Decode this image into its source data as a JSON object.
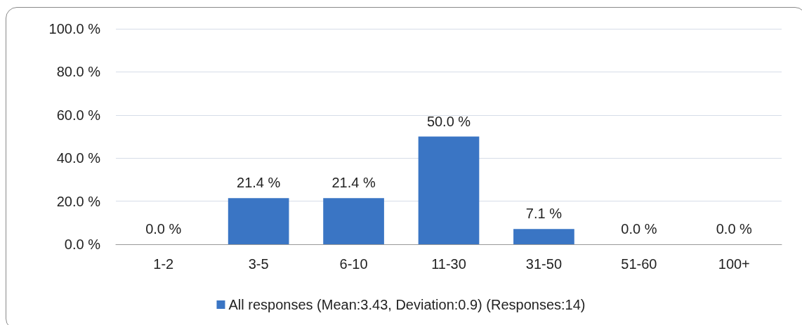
{
  "chart_data": {
    "type": "bar",
    "categories": [
      "1-2",
      "3-5",
      "6-10",
      "11-30",
      "31-50",
      "51-60",
      "100+"
    ],
    "series": [
      {
        "name": "All responses (Mean:3.43, Deviation:0.9) (Responses:14)",
        "color": "#3a75c4",
        "values": [
          0,
          21.4,
          21.4,
          50,
          7.1,
          0,
          0
        ],
        "value_labels": [
          "0.0 %",
          "21.4 %",
          "21.4 %",
          "50.0 %",
          "7.1 %",
          "0.0 %",
          "0.0 %"
        ]
      }
    ],
    "ylim": [
      0,
      100
    ],
    "yticks": [
      {
        "value": 0,
        "label": "0.0 %"
      },
      {
        "value": 20,
        "label": "20.0 %"
      },
      {
        "value": 40,
        "label": "40.0 %"
      },
      {
        "value": 60,
        "label": "60.0 %"
      },
      {
        "value": 80,
        "label": "80.0 %"
      },
      {
        "value": 100,
        "label": "100.0 %"
      }
    ],
    "grid": "y",
    "legend": "bottom"
  }
}
